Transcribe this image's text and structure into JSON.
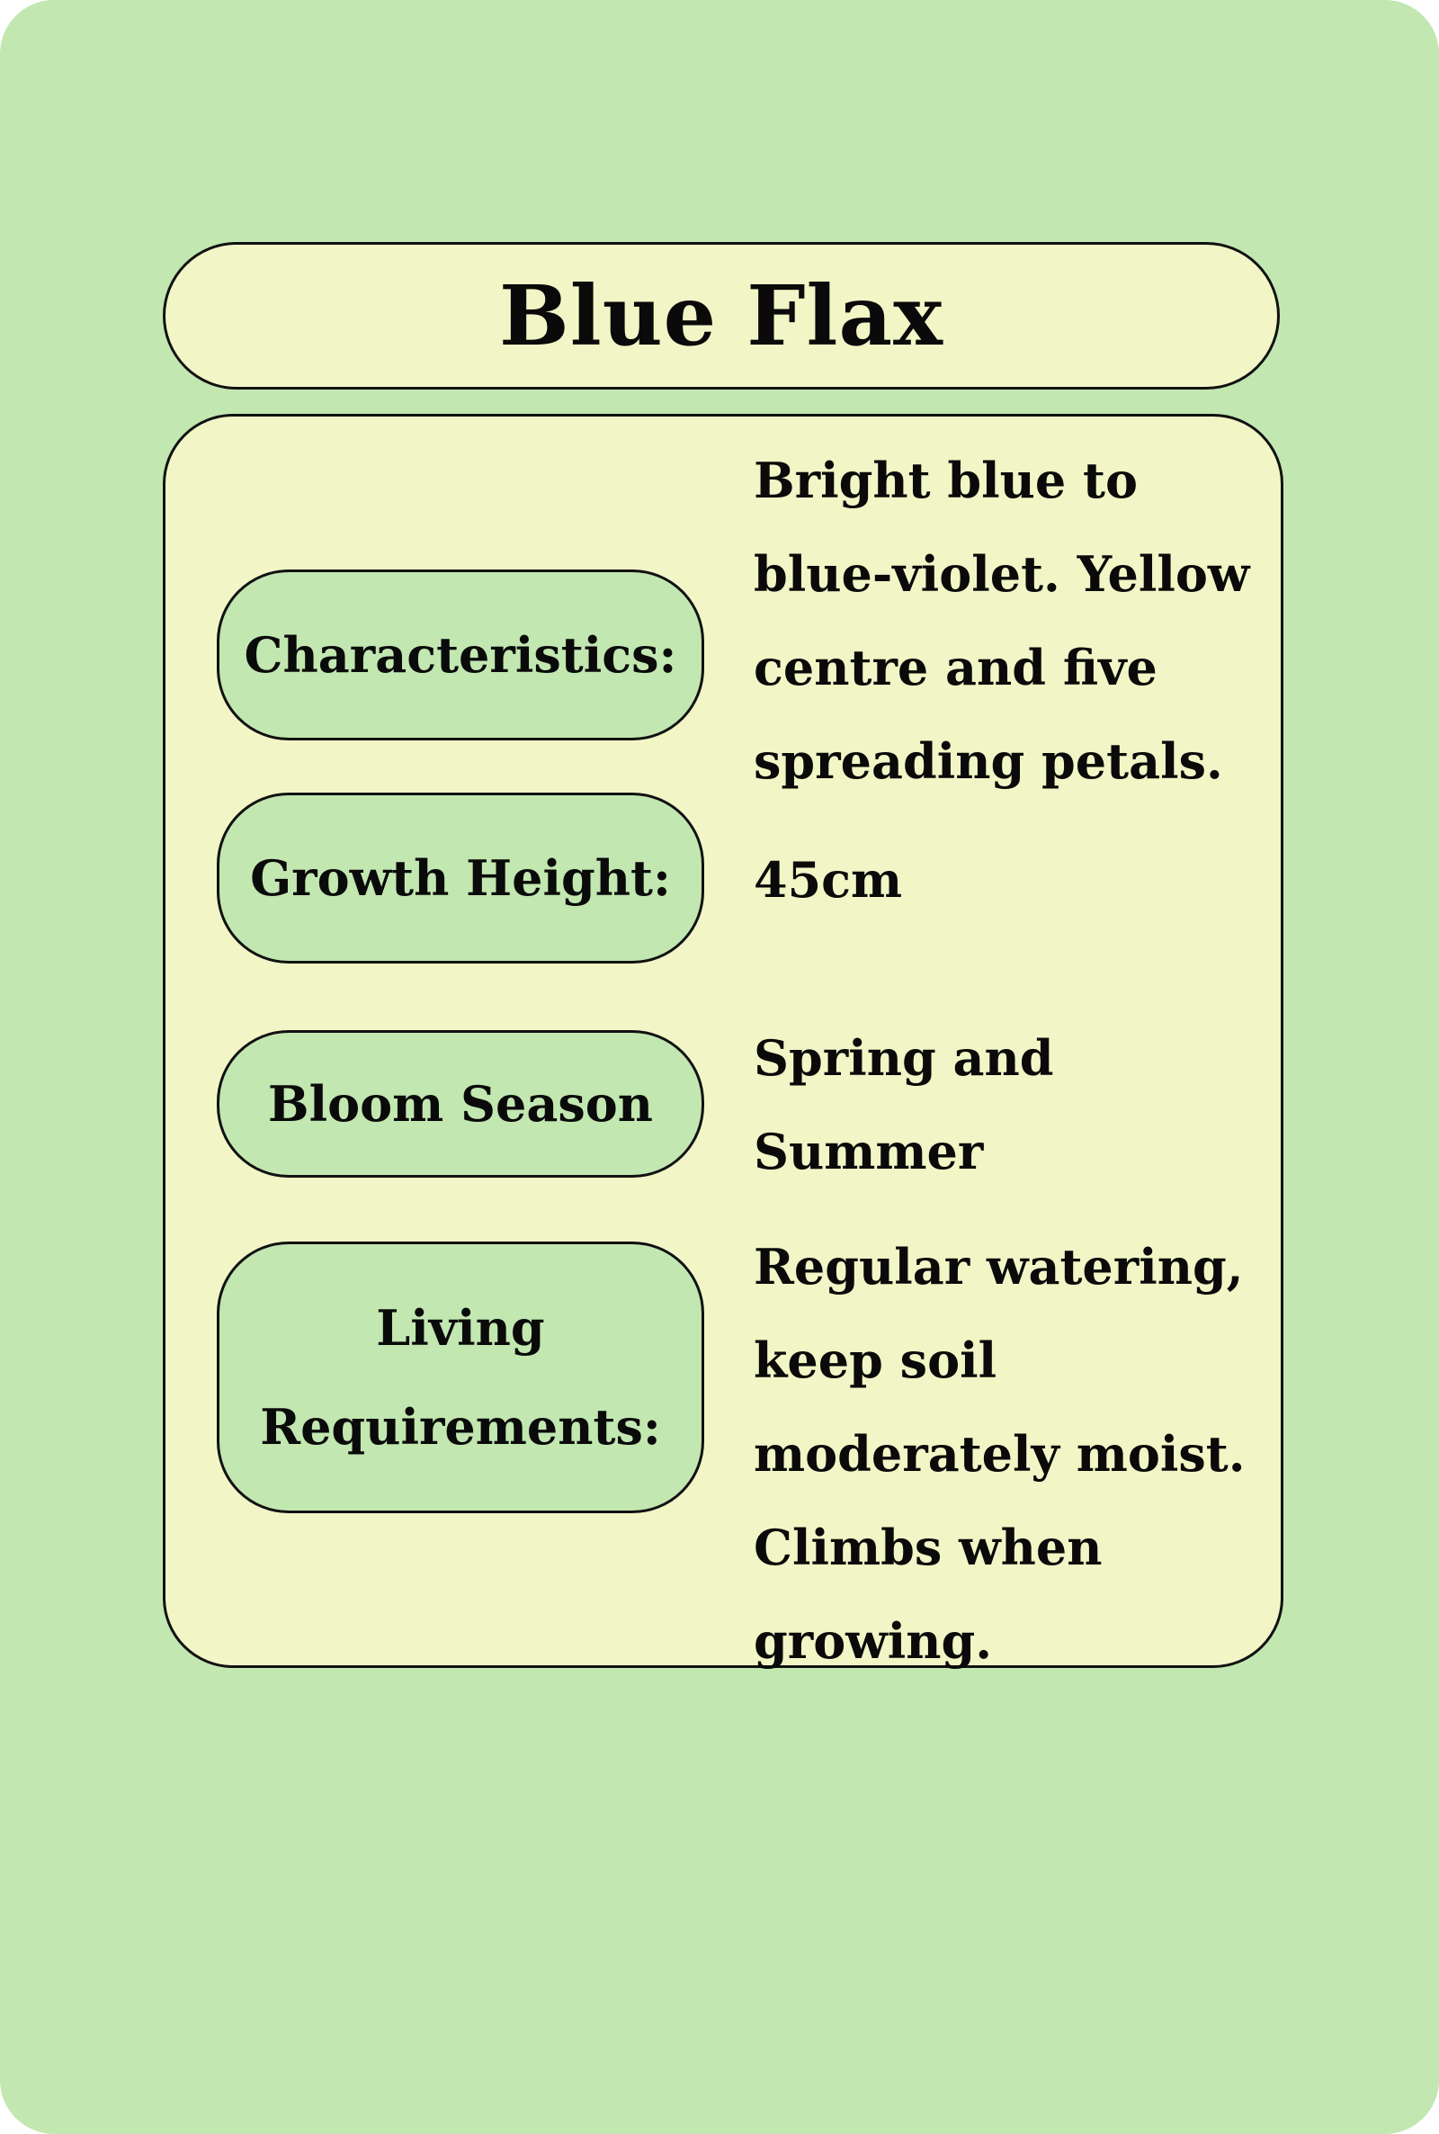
{
  "card": {
    "title": "Blue Flax",
    "rows": [
      {
        "label": "Characteristics:",
        "value": "Bright blue to blue-violet. Yellow centre and five spreading petals."
      },
      {
        "label": "Growth Height:",
        "value": "45cm"
      },
      {
        "label": "Bloom Season",
        "value": "Spring and Summer"
      },
      {
        "label": "Living Requirements:",
        "value": "Regular watering, keep soil moderately moist. Climbs when growing."
      }
    ]
  },
  "colors": {
    "background_green": "#c2e7b1",
    "panel_cream": "#f2f6c6",
    "outline": "#111111",
    "text": "#0a0a0a"
  }
}
